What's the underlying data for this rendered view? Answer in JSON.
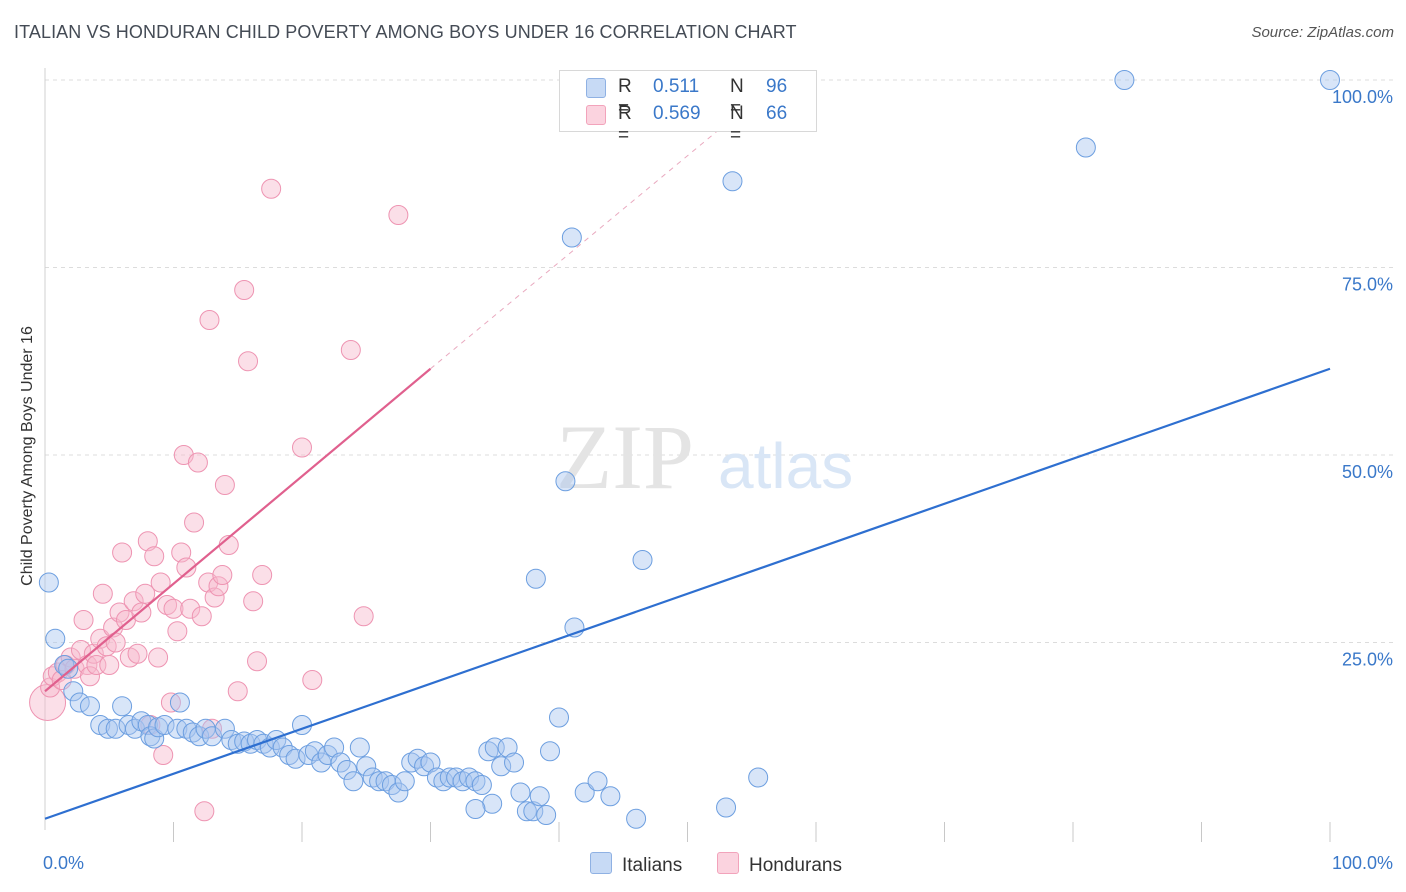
{
  "title": "ITALIAN VS HONDURAN CHILD POVERTY AMONG BOYS UNDER 16 CORRELATION CHART",
  "source": "Source: ZipAtlas.com",
  "watermark": {
    "zip": "ZIP",
    "atlas": "atlas"
  },
  "legend": {
    "r_label": "R =",
    "n_label": "N =",
    "rows": [
      {
        "r": "0.511",
        "n": "96",
        "color": "#a9c6ef"
      },
      {
        "r": "0.569",
        "n": "66",
        "color": "#f7b9cb"
      }
    ]
  },
  "bottom_legend": [
    {
      "label": "Italians",
      "color": "#a9c6ef"
    },
    {
      "label": "Hondurans",
      "color": "#f7b9cb"
    }
  ],
  "chart_data": {
    "type": "scatter",
    "title": "ITALIAN VS HONDURAN CHILD POVERTY AMONG BOYS UNDER 16 CORRELATION CHART",
    "xlabel": "",
    "ylabel": "Child Poverty Among Boys Under 16",
    "xlim": [
      0,
      100
    ],
    "ylim": [
      0,
      100
    ],
    "x_tick_labels": [
      "0.0%",
      "100.0%"
    ],
    "y_tick_labels": [
      "25.0%",
      "50.0%",
      "75.0%",
      "100.0%"
    ],
    "y_ticks": [
      25,
      50,
      75,
      100
    ],
    "grid": true,
    "legend_position": "top-center",
    "colors": {
      "italians": "#4a86d8",
      "hondurans": "#ec7aa0",
      "italians_line": "#2e6fd0",
      "hondurans_line": "#e0608e"
    },
    "series": [
      {
        "name": "Italians",
        "r": 0.511,
        "n": 96,
        "trend": {
          "x": [
            0,
            100
          ],
          "y": [
            1.5,
            61.5
          ],
          "dashed": false
        },
        "points": [
          [
            0.3,
            33
          ],
          [
            0.8,
            25.5
          ],
          [
            1.5,
            22
          ],
          [
            1.8,
            21.5
          ],
          [
            2.2,
            18.5
          ],
          [
            2.7,
            17
          ],
          [
            3.5,
            16.5
          ],
          [
            4.3,
            14
          ],
          [
            4.9,
            13.5
          ],
          [
            5.5,
            13.5
          ],
          [
            6,
            16.5
          ],
          [
            6.5,
            14
          ],
          [
            7,
            13.5
          ],
          [
            7.5,
            14.5
          ],
          [
            8,
            14
          ],
          [
            8.2,
            12.5
          ],
          [
            8.5,
            12.2
          ],
          [
            8.8,
            13.7
          ],
          [
            9.3,
            14
          ],
          [
            10.3,
            13.5
          ],
          [
            10.5,
            17
          ],
          [
            11,
            13.5
          ],
          [
            11.5,
            13
          ],
          [
            12,
            12.5
          ],
          [
            12.5,
            13.5
          ],
          [
            13,
            12.5
          ],
          [
            14,
            13.5
          ],
          [
            14.5,
            12
          ],
          [
            15,
            11.5
          ],
          [
            15.5,
            11.8
          ],
          [
            16,
            11.5
          ],
          [
            16.5,
            12
          ],
          [
            17,
            11.5
          ],
          [
            17.5,
            11
          ],
          [
            18,
            12
          ],
          [
            18.5,
            11
          ],
          [
            19,
            10
          ],
          [
            19.5,
            9.5
          ],
          [
            20,
            14
          ],
          [
            20.5,
            10
          ],
          [
            21,
            10.5
          ],
          [
            21.5,
            9
          ],
          [
            22,
            10
          ],
          [
            22.5,
            11
          ],
          [
            23,
            9
          ],
          [
            23.5,
            8
          ],
          [
            24,
            6.5
          ],
          [
            24.5,
            11
          ],
          [
            25,
            8.5
          ],
          [
            25.5,
            7
          ],
          [
            26,
            6.5
          ],
          [
            26.5,
            6.5
          ],
          [
            27,
            6
          ],
          [
            27.5,
            5
          ],
          [
            28,
            6.5
          ],
          [
            28.5,
            9
          ],
          [
            29,
            9.5
          ],
          [
            29.5,
            8.5
          ],
          [
            30,
            9
          ],
          [
            30.5,
            7
          ],
          [
            31,
            6.5
          ],
          [
            31.5,
            7
          ],
          [
            32,
            7
          ],
          [
            32.5,
            6.5
          ],
          [
            33,
            7
          ],
          [
            33.5,
            6.5
          ],
          [
            34,
            6
          ],
          [
            34.5,
            10.5
          ],
          [
            34.8,
            3.5
          ],
          [
            35,
            11
          ],
          [
            35.5,
            8.5
          ],
          [
            36,
            11
          ],
          [
            36.5,
            9
          ],
          [
            37,
            5
          ],
          [
            37.5,
            2.5
          ],
          [
            38,
            2.5
          ],
          [
            38.5,
            4.5
          ],
          [
            39,
            2
          ],
          [
            39.3,
            10.5
          ],
          [
            40,
            15
          ],
          [
            40.5,
            46.5
          ],
          [
            41,
            79
          ],
          [
            41.2,
            27
          ],
          [
            42,
            5
          ],
          [
            43,
            6.5
          ],
          [
            44,
            4.5
          ],
          [
            46,
            1.5
          ],
          [
            46.5,
            36
          ],
          [
            53,
            3
          ],
          [
            53.5,
            86.5
          ],
          [
            55.5,
            7
          ],
          [
            81,
            91
          ],
          [
            84,
            100
          ],
          [
            100,
            100
          ],
          [
            38.2,
            33.5
          ],
          [
            33.5,
            2.8
          ]
        ]
      },
      {
        "name": "Hondurans",
        "r": 0.569,
        "n": 66,
        "trend": {
          "x": [
            0,
            30
          ],
          "y": [
            18.5,
            61.5
          ],
          "dashed_extension": {
            "x": [
              30,
              55
            ],
            "y": [
              61.5,
              97
            ]
          }
        },
        "points": [
          [
            0.2,
            17
          ],
          [
            0.4,
            19
          ],
          [
            0.6,
            20.5
          ],
          [
            1,
            21
          ],
          [
            1.3,
            20
          ],
          [
            1.6,
            22
          ],
          [
            2,
            23
          ],
          [
            2.3,
            21.5
          ],
          [
            2.8,
            24
          ],
          [
            3,
            28
          ],
          [
            3.3,
            22
          ],
          [
            3.5,
            20.5
          ],
          [
            3.8,
            23.5
          ],
          [
            4,
            22
          ],
          [
            4.3,
            25.5
          ],
          [
            4.5,
            31.5
          ],
          [
            4.8,
            24.5
          ],
          [
            5,
            22
          ],
          [
            5.3,
            27
          ],
          [
            5.5,
            25
          ],
          [
            5.8,
            29
          ],
          [
            6,
            37
          ],
          [
            6.3,
            28
          ],
          [
            6.6,
            23
          ],
          [
            6.9,
            30.5
          ],
          [
            7.2,
            23.5
          ],
          [
            7.5,
            29
          ],
          [
            7.8,
            31.5
          ],
          [
            8,
            38.5
          ],
          [
            8.2,
            14
          ],
          [
            8.5,
            36.5
          ],
          [
            8.8,
            23
          ],
          [
            9,
            33
          ],
          [
            9.2,
            10
          ],
          [
            9.5,
            30
          ],
          [
            9.8,
            17
          ],
          [
            10,
            29.5
          ],
          [
            10.3,
            26.5
          ],
          [
            10.6,
            37
          ],
          [
            10.8,
            50
          ],
          [
            11,
            35
          ],
          [
            11.3,
            29.5
          ],
          [
            11.6,
            41
          ],
          [
            11.9,
            49
          ],
          [
            12.2,
            28.5
          ],
          [
            12.4,
            2.5
          ],
          [
            12.7,
            33
          ],
          [
            13,
            13.5
          ],
          [
            12.8,
            68
          ],
          [
            13.2,
            31
          ],
          [
            13.5,
            32.5
          ],
          [
            13.8,
            34
          ],
          [
            14,
            46
          ],
          [
            14.3,
            38
          ],
          [
            15,
            18.5
          ],
          [
            15.5,
            72
          ],
          [
            15.8,
            62.5
          ],
          [
            16.2,
            30.5
          ],
          [
            16.5,
            22.5
          ],
          [
            16.9,
            34
          ],
          [
            17.6,
            85.5
          ],
          [
            20,
            51
          ],
          [
            20.8,
            20
          ],
          [
            23.8,
            64
          ],
          [
            24.8,
            28.5
          ],
          [
            27.5,
            82
          ]
        ]
      }
    ]
  }
}
